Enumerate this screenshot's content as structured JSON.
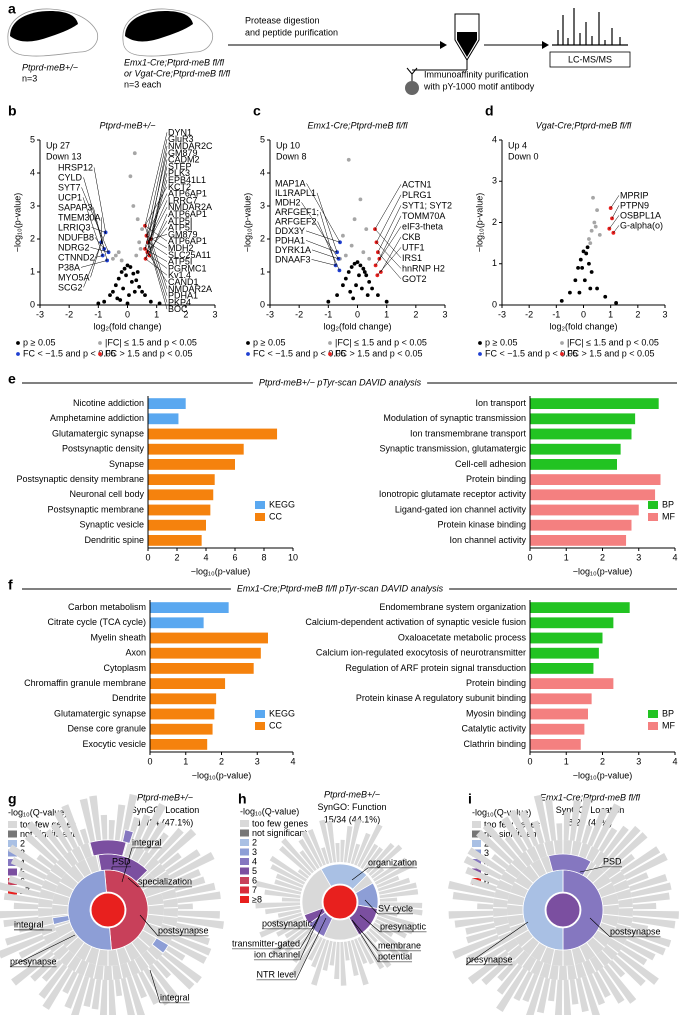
{
  "panel_labels": [
    "a",
    "b",
    "c",
    "d",
    "e",
    "f",
    "g",
    "h",
    "i"
  ],
  "schematic": {
    "group1": [
      "Ptprd-meB+/−",
      "n=3"
    ],
    "group2": [
      "Emx1-Cre;Ptprd-meB fl/fl",
      "or Vgat-Cre;Ptprd-meB fl/fl",
      "n=3 each"
    ],
    "step1": [
      "Protease digestion",
      "and peptide purification"
    ],
    "step2": [
      "Immunoaffinity purification",
      "with pY-1000 motif antibody"
    ],
    "step3": "LC-MS/MS"
  },
  "headings": [
    "Ptprd-meB+/− pTyr-scan DAVID analysis",
    "Emx1-Cre;Ptprd-meB fl/fl pTyr-scan DAVID analysis"
  ],
  "chart_data": [
    {
      "type": "scatter",
      "title": "Ptprd-meB+/−",
      "annotations": [
        "Up 27",
        "Down 13"
      ],
      "xlabel": "log₂(fold change)",
      "ylabel": "−log₁₀(p-value)",
      "xlim": [
        -3,
        3
      ],
      "xticks": [
        -3,
        -2,
        -1,
        0,
        1,
        2,
        3
      ],
      "ylim": [
        0,
        5
      ],
      "yticks": [
        0,
        1,
        2,
        3,
        4,
        5
      ],
      "series": [
        {
          "name": "p ≥ 0.05",
          "color": "#000000",
          "x": [
            -1.0,
            -0.8,
            -0.6,
            -0.5,
            -0.4,
            -0.3,
            -0.2,
            -0.1,
            0,
            0.1,
            0.2,
            0.3,
            0.4,
            0.5,
            0.6,
            0.8,
            1.1,
            -0.35,
            -0.15,
            0.05,
            0.25,
            -0.25,
            0,
            0.15,
            -0.05,
            0.35
          ],
          "values": [
            0.05,
            0.1,
            0.3,
            0.4,
            0.6,
            0.8,
            1.0,
            1.1,
            1.2,
            1.15,
            0.95,
            0.75,
            0.55,
            0.4,
            0.3,
            0.1,
            0.05,
            0.2,
            0.5,
            0.3,
            0.4,
            0.15,
            0.05,
            0.7,
            0.9,
            1.0
          ]
        },
        {
          "name": "|FC| ≤ 1.5 and p < 0.05",
          "color": "#a6a6a6",
          "x": [
            -0.5,
            -0.3,
            0.3,
            0.4,
            0.5,
            0.2,
            -0.2,
            0.35,
            0.45,
            -0.4,
            0.25,
            0.1
          ],
          "values": [
            1.4,
            1.6,
            1.5,
            1.9,
            2.3,
            3.0,
            1.35,
            2.6,
            1.7,
            1.5,
            4.6,
            3.9
          ]
        },
        {
          "name": "FC < −1.5 and p < 0.05",
          "color": "#1f3fd1",
          "x": [
            -0.75,
            -0.8,
            -0.65,
            -0.85,
            -0.7,
            -0.9
          ],
          "values": [
            2.2,
            1.7,
            1.6,
            1.5,
            1.35,
            1.9
          ]
        },
        {
          "name": "FC > 1.5 and p < 0.05",
          "color": "#e8201e",
          "x": [
            0.6,
            0.65,
            0.7,
            0.6,
            0.75,
            0.62,
            0.68,
            0.8
          ],
          "values": [
            2.4,
            2.1,
            1.9,
            1.7,
            1.5,
            1.4,
            1.6,
            2.0
          ]
        }
      ],
      "labels_left": [
        "HRSP12",
        "CYLD",
        "SYT7",
        "UCP1",
        "SAPAP3",
        "TMEM30A",
        "LRRIQ3",
        "NDUFB8",
        "NDRG2",
        "CTNND2",
        "P38A",
        "MYO5A",
        "SCG2"
      ],
      "labels_right": [
        "DYN1",
        "GluR3",
        "NMDAR2C",
        "GM879",
        "CADM2",
        "STEP",
        "PLK3",
        "EPB41L1",
        "KCT2",
        "ATP6AP1",
        "LRRC7",
        "NMDAR2A",
        "ATP6AP1",
        "ATP5I",
        "ATP5I",
        "GM879",
        "ATP6AP1",
        "MDH2",
        "SLC25A11",
        "ATP5I",
        "PGRMC1",
        "Kv1.4",
        "CAND1",
        "NMDAR2A",
        "PDHA1",
        "PKP4",
        "BOC"
      ]
    },
    {
      "type": "scatter",
      "title": "Emx1-Cre;Ptprd-meB fl/fl",
      "annotations": [
        "Up 10",
        "Down 8"
      ],
      "xlabel": "log₂(fold change)",
      "ylabel": "−log₁₀(p-value)",
      "xlim": [
        -3,
        3
      ],
      "xticks": [
        -3,
        -2,
        -1,
        0,
        1,
        2,
        3
      ],
      "ylim": [
        0,
        5
      ],
      "yticks": [
        0,
        1,
        2,
        3,
        4,
        5
      ],
      "series": [
        {
          "name": "p ≥ 0.05",
          "color": "#000000",
          "x": [
            -1.0,
            -0.7,
            -0.5,
            -0.4,
            -0.3,
            -0.2,
            -0.1,
            0,
            0.1,
            0.2,
            0.3,
            0.4,
            0.5,
            0.7,
            1.0,
            -0.25,
            -0.05,
            0.15,
            0.35,
            0.05,
            -0.15,
            0.25
          ],
          "values": [
            0.1,
            0.3,
            0.6,
            0.8,
            1.0,
            1.15,
            1.25,
            1.3,
            1.2,
            1.1,
            0.9,
            0.7,
            0.5,
            0.3,
            0.1,
            0.4,
            0.6,
            0.5,
            0.3,
            0.9,
            0.2,
            1.0
          ]
        },
        {
          "name": "|FC| ≤ 1.5 and p < 0.05",
          "color": "#a6a6a6",
          "x": [
            -0.4,
            -0.2,
            -0.5,
            -0.3,
            0.2,
            0.3,
            0.4,
            -0.1,
            0.1,
            -0.6
          ],
          "values": [
            1.5,
            1.8,
            2.1,
            4.4,
            1.6,
            2.3,
            1.4,
            2.6,
            3.2,
            1.4
          ]
        },
        {
          "name": "FC < −1.5 and p < 0.05",
          "color": "#1f3fd1",
          "x": [
            -0.6,
            -0.7,
            -0.65,
            -0.75,
            -0.62
          ],
          "values": [
            1.9,
            1.6,
            1.4,
            1.2,
            1.05
          ]
        },
        {
          "name": "FC > 1.5 and p < 0.05",
          "color": "#e8201e",
          "x": [
            0.6,
            0.65,
            0.7,
            0.75,
            0.62,
            0.8,
            0.68
          ],
          "values": [
            2.3,
            1.9,
            1.6,
            1.4,
            1.2,
            1.0,
            0.9
          ]
        }
      ],
      "labels_left": [
        "MAP1A",
        "IL1RAPL1",
        "MDH2",
        "ARFGEF1;",
        "ARFGEF2",
        "DDX3Y",
        "PDHA1",
        "DYRK1A",
        "DNAAF3"
      ],
      "labels_right": [
        "ACTN1",
        "PLRG1",
        "SYT1; SYT2",
        "TOMM70A",
        "eIF3-theta",
        "CKB",
        "UTF1",
        "IRS1",
        "hnRNP H2",
        "GOT2"
      ]
    },
    {
      "type": "scatter",
      "title": "Vgat-Cre;Ptprd-meB fl/fl",
      "annotations": [
        "Up 4",
        "Down 0"
      ],
      "xlabel": "log₂(fold change)",
      "ylabel": "−log₁₀(p-value)",
      "xlim": [
        -3,
        3
      ],
      "xticks": [
        -3,
        -2,
        -1,
        0,
        1,
        2,
        3
      ],
      "ylim": [
        0,
        4
      ],
      "yticks": [
        0,
        1,
        2,
        3,
        4
      ],
      "series": [
        {
          "name": "p ≥ 0.05",
          "color": "#000000",
          "x": [
            -0.8,
            -0.5,
            -0.3,
            -0.2,
            -0.1,
            0,
            0.1,
            0.2,
            0.3,
            0.5,
            0.8,
            1.2,
            -0.15,
            0.05,
            0.25,
            -0.05,
            0.15
          ],
          "values": [
            0.1,
            0.3,
            0.6,
            0.9,
            1.1,
            1.3,
            1.25,
            1.0,
            0.8,
            0.4,
            0.2,
            0.05,
            0.3,
            0.6,
            0.4,
            0.9,
            1.4
          ]
        },
        {
          "name": "|FC| ≤ 1.5 and p < 0.05",
          "color": "#a6a6a6",
          "x": [
            0.2,
            0.3,
            0.4,
            0.5,
            0.35,
            0.6,
            0.25,
            0.45
          ],
          "values": [
            1.6,
            1.8,
            2.0,
            2.3,
            2.6,
            1.7,
            1.5,
            1.9
          ]
        },
        {
          "name": "FC < −1.5 and p < 0.05",
          "color": "#1f3fd1",
          "x": [],
          "values": []
        },
        {
          "name": "FC > 1.5 and p < 0.05",
          "color": "#e8201e",
          "x": [
            1.0,
            1.05,
            0.95,
            1.1
          ],
          "values": [
            2.35,
            2.1,
            1.85,
            1.75
          ]
        }
      ],
      "labels_left": [],
      "labels_right": [
        "MPRIP",
        "PTPN9",
        "OSBPL1A",
        "G-alpha(o)"
      ]
    },
    {
      "type": "bar",
      "orientation": "horizontal",
      "xlabel": "−log₁₀(p-value)",
      "xlim": [
        0,
        10
      ],
      "xticks": [
        0,
        2,
        4,
        6,
        8,
        10
      ],
      "categories": [
        "Nicotine addiction",
        "Amphetamine addiction",
        "Glutamatergic synapse",
        "Postsynaptic density",
        "Synapse",
        "Postsynaptic density membrane",
        "Neuronal cell body",
        "Postsynaptic membrane",
        "Synaptic vesicle",
        "Dendritic spine"
      ],
      "series": [
        {
          "name": "KEGG",
          "color": "#5aa8f0",
          "values": [
            2.6,
            2.1,
            null,
            null,
            null,
            null,
            null,
            null,
            null,
            null
          ]
        },
        {
          "name": "CC",
          "color": "#f5820d",
          "values": [
            null,
            null,
            8.9,
            6.6,
            6.0,
            4.6,
            4.5,
            4.3,
            4.0,
            3.7
          ]
        }
      ]
    },
    {
      "type": "bar",
      "orientation": "horizontal",
      "xlabel": "−log₁₀(p-value)",
      "xlim": [
        0,
        4
      ],
      "xticks": [
        0,
        1,
        2,
        3,
        4
      ],
      "categories": [
        "Ion transport",
        "Modulation of synaptic transmission",
        "Ion transmembrane transport",
        "Synaptic transmission, glutamatergic",
        "Cell-cell adhesion",
        "Protein binding",
        "Ionotropic glutamate receptor activity",
        "Ligand-gated ion channel activity",
        "Protein kinase binding",
        "Ion channel activity"
      ],
      "series": [
        {
          "name": "BP",
          "color": "#22c322",
          "values": [
            3.55,
            2.9,
            2.8,
            2.5,
            2.4,
            null,
            null,
            null,
            null,
            null
          ]
        },
        {
          "name": "MF",
          "color": "#f48080",
          "values": [
            null,
            null,
            null,
            null,
            null,
            3.6,
            3.45,
            3.0,
            2.8,
            2.65
          ]
        }
      ]
    },
    {
      "type": "bar",
      "orientation": "horizontal",
      "xlabel": "−log₁₀(p-value)",
      "xlim": [
        0,
        4
      ],
      "xticks": [
        0,
        1,
        2,
        3,
        4
      ],
      "categories": [
        "Carbon metabolism",
        "Citrate cycle (TCA cycle)",
        "Myelin sheath",
        "Axon",
        "Cytoplasm",
        "Chromaffin granule membrane",
        "Dendrite",
        "Glutamatergic synapse",
        "Dense core granule",
        "Exocytic vesicle"
      ],
      "series": [
        {
          "name": "KEGG",
          "color": "#5aa8f0",
          "values": [
            2.2,
            1.5,
            null,
            null,
            null,
            null,
            null,
            null,
            null,
            null
          ]
        },
        {
          "name": "CC",
          "color": "#f5820d",
          "values": [
            null,
            null,
            3.3,
            3.1,
            2.9,
            2.1,
            1.85,
            1.8,
            1.75,
            1.6
          ]
        }
      ]
    },
    {
      "type": "bar",
      "orientation": "horizontal",
      "xlabel": "−log₁₀(p-value)",
      "xlim": [
        0,
        4
      ],
      "xticks": [
        0,
        1,
        2,
        3,
        4
      ],
      "categories": [
        "Endomembrane system organization",
        "Calcium-dependent activation of synaptic vesicle fusion",
        "Oxaloacetate metabolic process",
        "Calcium ion-regulated exocytosis of neurotransmitter",
        "Regulation of ARF protein signal transduction",
        "Protein binding",
        "Protein kinase A regulatory subunit binding",
        "Myosin binding",
        "Catalytic activity",
        "Clathrin binding"
      ],
      "series": [
        {
          "name": "BP",
          "color": "#22c322",
          "values": [
            2.75,
            2.3,
            2.0,
            1.9,
            1.75,
            null,
            null,
            null,
            null,
            null
          ]
        },
        {
          "name": "MF",
          "color": "#f48080",
          "values": [
            null,
            null,
            null,
            null,
            null,
            2.3,
            1.7,
            1.6,
            1.5,
            1.4
          ]
        }
      ]
    }
  ],
  "sunbursts": [
    {
      "title": [
        "Ptprd-meB+/−",
        "SynGO: Location",
        "16/34 (47.1%)"
      ],
      "legend_title": "-log₁₀(Q-value)",
      "legend": [
        {
          "label": "too few genes",
          "color": "#d9d9d9"
        },
        {
          "label": "not significant",
          "color": "#777777"
        },
        {
          "label": "2",
          "color": "#a9c0e4"
        },
        {
          "label": "3",
          "color": "#8d9ed6"
        },
        {
          "label": "4",
          "color": "#8577c0"
        },
        {
          "label": "5",
          "color": "#7b4fa0"
        },
        {
          "label": "6",
          "color": "#c8405a"
        },
        {
          "label": "≥7",
          "color": "#e8201e"
        }
      ],
      "labels": [
        "integral",
        "PSD",
        "specialization",
        "postsynapse",
        "integral",
        "presynapse",
        "integral"
      ]
    },
    {
      "title": [
        "Ptprd-meB+/−",
        "SynGO: Function",
        "15/34 (44.1%)"
      ],
      "legend_title": "-log₁₀(Q-value)",
      "legend": [
        {
          "label": "too few genes",
          "color": "#d9d9d9"
        },
        {
          "label": "not significant",
          "color": "#777777"
        },
        {
          "label": "2",
          "color": "#a9c0e4"
        },
        {
          "label": "3",
          "color": "#8d9ed6"
        },
        {
          "label": "4",
          "color": "#8577c0"
        },
        {
          "label": "5",
          "color": "#7b4fa0"
        },
        {
          "label": "6",
          "color": "#c8405a"
        },
        {
          "label": "7",
          "color": "#d82c3a"
        },
        {
          "label": "≥8",
          "color": "#e8201e"
        }
      ],
      "labels": [
        "organization",
        "SV cycle",
        "presynaptic",
        "membrane",
        "potential",
        "postsynaptic",
        "transmitter-gated",
        "ion channel",
        "NTR level"
      ]
    },
    {
      "title": [
        "Emx1-Cre;Ptprd-meB fl/fl",
        "SynGO: Location",
        "8/20 (40%)"
      ],
      "legend_title": "-log₁₀(Q-value)",
      "legend": [
        {
          "label": "too few genes",
          "color": "#d9d9d9"
        },
        {
          "label": "not significant",
          "color": "#777777"
        },
        {
          "label": "2",
          "color": "#a9c0e4"
        },
        {
          "label": "3",
          "color": "#8d9ed6"
        },
        {
          "label": "4",
          "color": "#8577c0"
        },
        {
          "label": "5",
          "color": "#7b4fa0"
        },
        {
          "label": "6",
          "color": "#e8201e"
        }
      ],
      "labels": [
        "PSD",
        "postsynapse",
        "presynapse"
      ]
    }
  ]
}
